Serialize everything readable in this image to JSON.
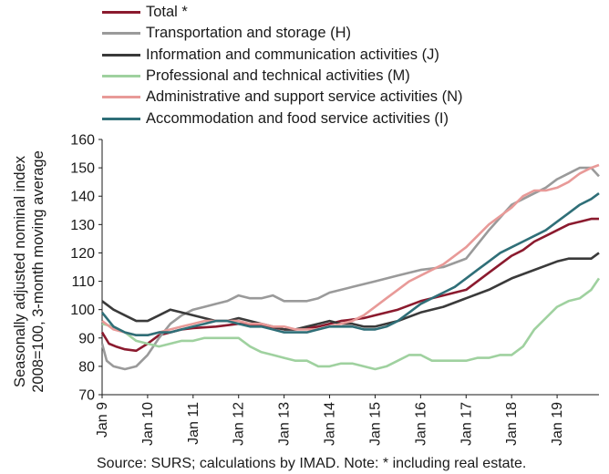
{
  "chart_data": {
    "type": "line",
    "xlabel": "",
    "ylabel_line1": "Seasonally adjusted nominal index",
    "ylabel_line2": "2008=100, 3-month moving average",
    "ylim": [
      70,
      160
    ],
    "yticks": [
      "160",
      "150",
      "140",
      "130",
      "120",
      "110",
      "100",
      "90",
      "80",
      "70"
    ],
    "xlim": [
      2009.0,
      2019.92
    ],
    "xticks": [
      "Jan 9",
      "Jan 10",
      "Jan 11",
      "Jan 12",
      "Jan 13",
      "Jan 14",
      "Jan 15",
      "Jan 16",
      "Jan 17",
      "Jan 18",
      "Jan 19"
    ],
    "legend_placement": "top-left",
    "grid": false,
    "series": [
      {
        "name": "Total *",
        "color": "#8b1a2e",
        "x": [
          2009.0,
          2009.15,
          2009.3,
          2009.5,
          2009.75,
          2010.0,
          2010.25,
          2010.5,
          2010.75,
          2011.0,
          2011.5,
          2012.0,
          2012.5,
          2013.0,
          2013.25,
          2013.5,
          2013.75,
          2014.0,
          2014.25,
          2014.5,
          2014.75,
          2015.0,
          2015.5,
          2016.0,
          2016.5,
          2017.0,
          2017.5,
          2018.0,
          2018.25,
          2018.5,
          2018.75,
          2019.0,
          2019.25,
          2019.5,
          2019.75,
          2019.92
        ],
        "values": [
          92,
          88,
          87,
          86,
          85.5,
          88,
          91,
          92,
          93,
          93.5,
          94,
          95,
          94.5,
          93,
          93,
          93.5,
          94,
          95,
          96,
          96.5,
          97,
          98,
          100,
          103,
          105,
          107,
          113,
          119,
          121,
          124,
          126,
          128,
          130,
          131,
          132,
          132
        ]
      },
      {
        "name": "Transportation and storage (H)",
        "color": "#9a9a9a",
        "x": [
          2009.0,
          2009.1,
          2009.25,
          2009.5,
          2009.75,
          2010.0,
          2010.25,
          2010.5,
          2010.75,
          2011.0,
          2011.25,
          2011.5,
          2011.75,
          2012.0,
          2012.25,
          2012.5,
          2012.75,
          2013.0,
          2013.25,
          2013.5,
          2013.75,
          2014.0,
          2014.5,
          2015.0,
          2015.5,
          2016.0,
          2016.5,
          2017.0,
          2017.5,
          2018.0,
          2018.25,
          2018.5,
          2018.75,
          2019.0,
          2019.25,
          2019.5,
          2019.75,
          2019.92
        ],
        "values": [
          88,
          82,
          80,
          79,
          80,
          84,
          90,
          95,
          98,
          100,
          101,
          102,
          103,
          105,
          104,
          104,
          105,
          103,
          103,
          103,
          104,
          106,
          108,
          110,
          112,
          114,
          115,
          118,
          128,
          137,
          139,
          141,
          143,
          146,
          148,
          150,
          150,
          147
        ]
      },
      {
        "name": "Information and communication activities (J)",
        "color": "#3a3a3a",
        "x": [
          2009.0,
          2009.25,
          2009.5,
          2009.75,
          2010.0,
          2010.25,
          2010.5,
          2010.75,
          2011.0,
          2011.25,
          2011.5,
          2011.75,
          2012.0,
          2012.25,
          2012.5,
          2012.75,
          2013.0,
          2013.25,
          2013.5,
          2013.75,
          2014.0,
          2014.25,
          2014.5,
          2014.75,
          2015.0,
          2015.5,
          2016.0,
          2016.5,
          2017.0,
          2017.5,
          2018.0,
          2018.5,
          2019.0,
          2019.25,
          2019.5,
          2019.75,
          2019.92
        ],
        "values": [
          103,
          100,
          98,
          96,
          96,
          98,
          100,
          99,
          98,
          97,
          96,
          96,
          97,
          96,
          95,
          94,
          93,
          93,
          94,
          95,
          96,
          95,
          95,
          94,
          94,
          96,
          99,
          101,
          104,
          107,
          111,
          114,
          117,
          118,
          118,
          118,
          120
        ]
      },
      {
        "name": "Professional and technical activities (M)",
        "color": "#9fd19f",
        "x": [
          2009.0,
          2009.25,
          2009.5,
          2009.75,
          2010.0,
          2010.25,
          2010.5,
          2010.75,
          2011.0,
          2011.25,
          2011.5,
          2011.75,
          2012.0,
          2012.25,
          2012.5,
          2012.75,
          2013.0,
          2013.25,
          2013.5,
          2013.75,
          2014.0,
          2014.25,
          2014.5,
          2014.75,
          2015.0,
          2015.25,
          2015.5,
          2015.75,
          2016.0,
          2016.25,
          2016.5,
          2016.75,
          2017.0,
          2017.25,
          2017.5,
          2017.75,
          2018.0,
          2018.25,
          2018.5,
          2018.75,
          2019.0,
          2019.25,
          2019.5,
          2019.75,
          2019.92
        ],
        "values": [
          95,
          94,
          92,
          89,
          88,
          87,
          88,
          89,
          89,
          90,
          90,
          90,
          90,
          87,
          85,
          84,
          83,
          82,
          82,
          80,
          80,
          81,
          81,
          80,
          79,
          80,
          82,
          84,
          84,
          82,
          82,
          82,
          82,
          83,
          83,
          84,
          84,
          87,
          93,
          97,
          101,
          103,
          104,
          107,
          111
        ]
      },
      {
        "name": "Administrative and support service activities (N)",
        "color": "#e89a98",
        "x": [
          2009.0,
          2009.25,
          2009.5,
          2009.75,
          2010.0,
          2010.25,
          2010.5,
          2010.75,
          2011.0,
          2011.25,
          2011.5,
          2011.75,
          2012.0,
          2012.25,
          2012.5,
          2012.75,
          2013.0,
          2013.25,
          2013.5,
          2013.75,
          2014.0,
          2014.25,
          2014.5,
          2014.75,
          2015.0,
          2015.25,
          2015.5,
          2015.75,
          2016.0,
          2016.25,
          2016.5,
          2016.75,
          2017.0,
          2017.25,
          2017.5,
          2017.75,
          2018.0,
          2018.25,
          2018.5,
          2018.75,
          2019.0,
          2019.25,
          2019.5,
          2019.75,
          2019.92
        ],
        "values": [
          96,
          93,
          92,
          91,
          91,
          92,
          93,
          94,
          95,
          96,
          96,
          96,
          96,
          95,
          95,
          94,
          94,
          93,
          93,
          93,
          94,
          95,
          96,
          98,
          101,
          104,
          107,
          110,
          112,
          114,
          116,
          119,
          122,
          126,
          130,
          133,
          136,
          140,
          142,
          142,
          143,
          145,
          148,
          150,
          151
        ]
      },
      {
        "name": "Accommodation and food service activities (I)",
        "color": "#2f6f78",
        "x": [
          2009.0,
          2009.25,
          2009.5,
          2009.75,
          2010.0,
          2010.25,
          2010.5,
          2010.75,
          2011.0,
          2011.25,
          2011.5,
          2011.75,
          2012.0,
          2012.25,
          2012.5,
          2012.75,
          2013.0,
          2013.25,
          2013.5,
          2013.75,
          2014.0,
          2014.25,
          2014.5,
          2014.75,
          2015.0,
          2015.25,
          2015.5,
          2015.75,
          2016.0,
          2016.25,
          2016.5,
          2016.75,
          2017.0,
          2017.25,
          2017.5,
          2017.75,
          2018.0,
          2018.25,
          2018.5,
          2018.75,
          2019.0,
          2019.25,
          2019.5,
          2019.75,
          2019.92
        ],
        "values": [
          99,
          94,
          92,
          91,
          91,
          92,
          92,
          93,
          94,
          95,
          96,
          96,
          95,
          94,
          94,
          93,
          92,
          92,
          92,
          93,
          94,
          94,
          94,
          93,
          93,
          94,
          96,
          99,
          102,
          104,
          106,
          108,
          111,
          114,
          117,
          120,
          122,
          124,
          126,
          128,
          131,
          134,
          137,
          139,
          141
        ]
      }
    ]
  },
  "source": "Source:  SURS; calculations by IMAD. Note: * including real estate."
}
